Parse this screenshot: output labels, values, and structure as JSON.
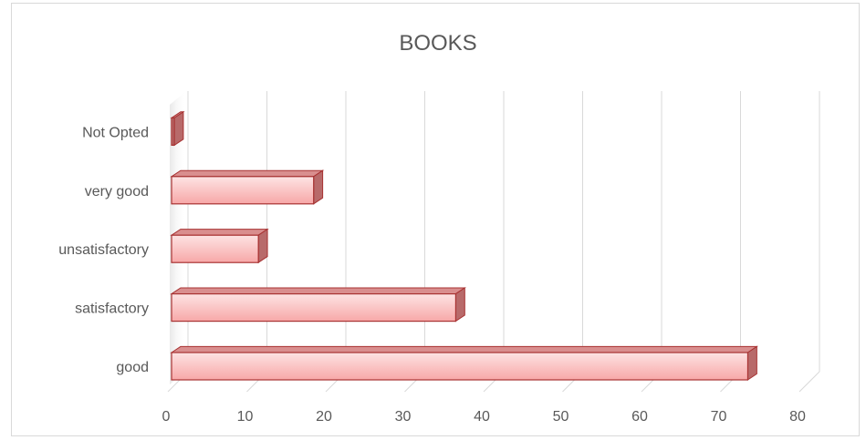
{
  "chart_data": {
    "type": "bar",
    "orientation": "horizontal",
    "title": "BOOKS",
    "categories": [
      "good",
      "satisfactory",
      "unsatisfactory",
      "very good",
      "Not Opted"
    ],
    "values": [
      73,
      36,
      11,
      18,
      0
    ],
    "xlim": [
      0,
      80
    ],
    "x_ticks": [
      "0",
      "10",
      "20",
      "30",
      "40",
      "50",
      "60",
      "70",
      "80"
    ],
    "xlabel": "",
    "ylabel": "",
    "grid": true,
    "legend": "none",
    "style": "3d-bar",
    "colors": {
      "bar_front_top": "#fde3e3",
      "bar_front_bottom": "#f7a8a8",
      "bar_top": "#d98e8e",
      "bar_side": "#b86a6a",
      "bar_stroke": "#a83232",
      "grid": "#d9d9d9"
    }
  }
}
